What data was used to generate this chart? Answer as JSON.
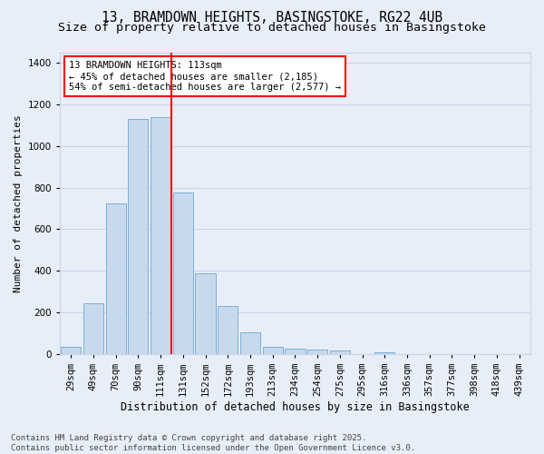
{
  "title_line1": "13, BRAMDOWN HEIGHTS, BASINGSTOKE, RG22 4UB",
  "title_line2": "Size of property relative to detached houses in Basingstoke",
  "xlabel": "Distribution of detached houses by size in Basingstoke",
  "ylabel": "Number of detached properties",
  "categories": [
    "29sqm",
    "49sqm",
    "70sqm",
    "90sqm",
    "111sqm",
    "131sqm",
    "152sqm",
    "172sqm",
    "193sqm",
    "213sqm",
    "234sqm",
    "254sqm",
    "275sqm",
    "295sqm",
    "316sqm",
    "336sqm",
    "357sqm",
    "377sqm",
    "398sqm",
    "418sqm",
    "439sqm"
  ],
  "values": [
    35,
    245,
    725,
    1130,
    1140,
    775,
    390,
    230,
    105,
    35,
    25,
    20,
    15,
    0,
    10,
    0,
    0,
    0,
    0,
    0,
    0
  ],
  "bar_color": "#c8d9ed",
  "bar_edge_color": "#7bafd4",
  "grid_color": "#c8d4e8",
  "bg_color": "#e8eef8",
  "vline_color": "red",
  "vline_index": 4.5,
  "annotation_text": "13 BRAMDOWN HEIGHTS: 113sqm\n← 45% of detached houses are smaller (2,185)\n54% of semi-detached houses are larger (2,577) →",
  "annotation_box_color": "white",
  "annotation_box_edge": "red",
  "footnote": "Contains HM Land Registry data © Crown copyright and database right 2025.\nContains public sector information licensed under the Open Government Licence v3.0.",
  "ylim": [
    0,
    1450
  ],
  "yticks": [
    0,
    200,
    400,
    600,
    800,
    1000,
    1200,
    1400
  ],
  "title_fontsize": 10.5,
  "subtitle_fontsize": 9.5,
  "xlabel_fontsize": 8.5,
  "ylabel_fontsize": 8,
  "tick_fontsize": 7.5,
  "annot_fontsize": 7.5,
  "footnote_fontsize": 6.5
}
